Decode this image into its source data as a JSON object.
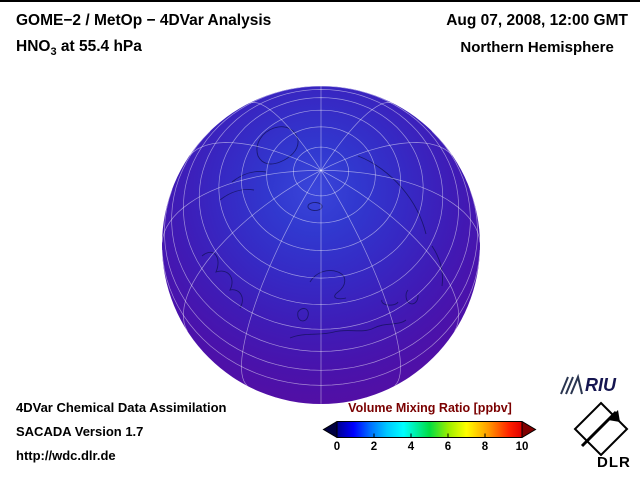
{
  "header": {
    "title": "GOME−2 / MetOp − 4DVar Analysis",
    "molecule_prefix": "HNO",
    "molecule_sub": "3",
    "molecule_suffix": " at 55.4 hPa",
    "datetime": "Aug 07, 2008, 12:00 GMT",
    "region": "Northern Hemisphere"
  },
  "footer": {
    "line1": "4DVar Chemical Data Assimilation",
    "line2": "SACADA Version 1.7",
    "line3": "http://wdc.dlr.de"
  },
  "colorbar": {
    "label": "Volume Mixing Ratio [ppbv]",
    "label_color": "#7a0000",
    "ticks": [
      "0",
      "2",
      "4",
      "6",
      "8",
      "10"
    ],
    "range": [
      0,
      10
    ],
    "gradient_stops": [
      "#000090",
      "#0000ff",
      "#0070ff",
      "#00c8ff",
      "#00ffff",
      "#00dd44",
      "#99ee00",
      "#ffff00",
      "#ff9900",
      "#ff2200",
      "#e00000"
    ],
    "under_arrow_color": "#000040",
    "over_arrow_color": "#7f0000"
  },
  "logos": {
    "riu_text": "RIU",
    "dlr_text": "DLR"
  },
  "globe_colors": {
    "pole_center": "#3a45da",
    "midlatitude": "#3f1bb6",
    "limb": "#5a0c9d"
  },
  "chart_data": {
    "type": "heatmap",
    "title": "GOME−2 / MetOp − 4DVar Analysis",
    "subtitle": "HNO3 at 55.4 hPa",
    "datetime": "Aug 07, 2008, 12:00 GMT",
    "region": "Northern Hemisphere",
    "projection": "orthographic globe viewed from above the North Pole with graticule and coastlines",
    "colorbar_label": "Volume Mixing Ratio [ppbv]",
    "colorbar_ticks": [
      0,
      2,
      4,
      6,
      8,
      10
    ],
    "colorbar_range": [
      0,
      10
    ],
    "field_estimate": {
      "pole_ppbv": 2.0,
      "midlatitudes_ppbv": 1.0,
      "equatorial_limb_ppbv": 0.5,
      "pattern": "broad maximum of roughly 2 ppbv (blue) centered near the pole, decreasing smoothly to below 1 ppbv (violet) toward the equatorward limb"
    }
  }
}
